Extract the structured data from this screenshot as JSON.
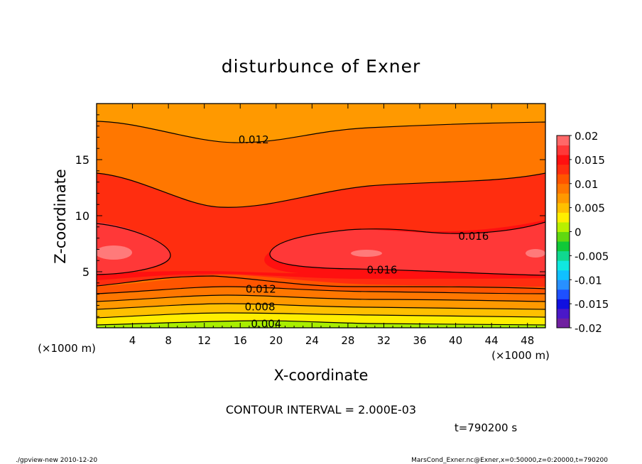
{
  "chart_data": {
    "type": "contour",
    "title": "disturbunce of Exner",
    "xlabel": "X-coordinate",
    "ylabel": "Z-coordinate",
    "x_unit": "(×1000 m)",
    "y_unit": "(×1000 m)",
    "xlim": [
      0,
      50
    ],
    "ylim": [
      0,
      20
    ],
    "x_ticks": [
      4,
      8,
      12,
      16,
      20,
      24,
      28,
      32,
      36,
      40,
      44,
      48
    ],
    "y_ticks": [
      5,
      10,
      15
    ],
    "contour_interval_text": "CONTOUR INTERVAL = 2.000E-03",
    "time_text": "t=790200 s",
    "contour_labels": [
      {
        "text": "0.012",
        "x": 17.5,
        "z": 16.7
      },
      {
        "text": "0.016",
        "x": 42.0,
        "z": 8.1
      },
      {
        "text": "0.016",
        "x": 31.8,
        "z": 5.1
      },
      {
        "text": "0.012",
        "x": 18.3,
        "z": 3.4
      },
      {
        "text": "0.008",
        "x": 18.2,
        "z": 1.8
      },
      {
        "text": "0.004",
        "x": 18.9,
        "z": 0.3
      }
    ],
    "colorbar": {
      "range": [
        -0.02,
        0.02
      ],
      "tick_labels": [
        "0.02",
        "0.015",
        "0.01",
        "0.005",
        "0",
        "-0.005",
        "-0.01",
        "-0.015",
        "-0.02"
      ],
      "colors": [
        "#7020a0",
        "#4a18c8",
        "#1010e0",
        "#1e50ff",
        "#2890ff",
        "#10c0ff",
        "#10e8e0",
        "#10d890",
        "#10c838",
        "#60d810",
        "#b8f000",
        "#ffee00",
        "#ffc000",
        "#ff9900",
        "#ff7700",
        "#ff5500",
        "#ff2d0f",
        "#ff1010",
        "#ff3838",
        "#ff6868"
      ]
    },
    "bands": {
      "0.002": "#a8ee00",
      "0.004": "#ddf000",
      "0.006": "#ffee00",
      "0.008": "#ffc000",
      "0.010": "#ff9900",
      "0.012": "#ff7700",
      "0.014": "#ff5500",
      "0.016": "#ff2d0f",
      "0.018": "#ff1010",
      "0.020": "#ff3838"
    }
  },
  "footer": {
    "left": "./gpview-new   2010-12-20",
    "right": "MarsCond_Exner.nc@Exner,x=0:50000,z=0:20000,t=790200"
  }
}
